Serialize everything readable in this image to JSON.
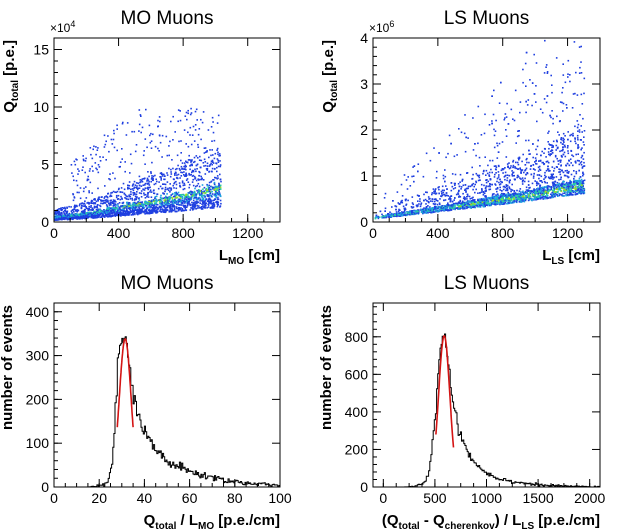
{
  "chart_data": [
    {
      "type": "scatter",
      "title": "MO Muons",
      "xlabel": {
        "main": "L",
        "sub": "MO",
        "unit": " [cm]"
      },
      "ylabel": {
        "main": "Q",
        "sub": "total",
        "unit": " [p.e.]"
      },
      "xlim": [
        0,
        1400
      ],
      "ylim": [
        0,
        160000
      ],
      "xticks": [
        0,
        400,
        800,
        1200
      ],
      "yticks": [
        0,
        50000,
        100000,
        150000
      ],
      "ytick_labels": [
        "0",
        "5",
        "10",
        "15"
      ],
      "y_multiplier": {
        "base": "×10",
        "exp": "4"
      },
      "description": "2D density histogram; band rising from about 5000 p.e. at 0 cm to about 30000 p.e. at 1030 cm; points scattered up to about 100000 p.e.; no entries beyond 1030 cm",
      "band": {
        "x": [
          0,
          200,
          400,
          600,
          800,
          1030
        ],
        "y": [
          5000,
          8000,
          13000,
          18000,
          23000,
          30000
        ]
      },
      "x_max_entries": 1030,
      "y_max_entries": 100000
    },
    {
      "type": "scatter",
      "title": "LS Muons",
      "xlabel": {
        "main": "L",
        "sub": "LS",
        "unit": " [cm]"
      },
      "ylabel": {
        "main": "Q",
        "sub": "total",
        "unit": " [p.e.]"
      },
      "xlim": [
        0,
        1400
      ],
      "ylim": [
        0,
        4000000
      ],
      "xticks": [
        0,
        400,
        800,
        1200
      ],
      "yticks": [
        0,
        1000000,
        2000000,
        3000000,
        4000000
      ],
      "ytick_labels": [
        "0",
        "1",
        "2",
        "3",
        "4"
      ],
      "y_multiplier": {
        "base": "×10",
        "exp": "6"
      },
      "description": "2D density histogram; linear band from about 100000 p.e. at 0 cm to about 800000 p.e. at 1300 cm; scattered tail up to about 4000000 p.e.",
      "band": {
        "x": [
          0,
          300,
          600,
          900,
          1300
        ],
        "y": [
          100000,
          250000,
          400000,
          560000,
          800000
        ]
      },
      "x_max_entries": 1300,
      "y_max_entries": 3900000
    },
    {
      "type": "line",
      "title": "MO Muons",
      "xlabel": {
        "main": "Q",
        "sub": "total",
        "unit": " / L",
        "sub2": "MO",
        "unit2": " [p.e./cm]"
      },
      "ylabel": {
        "main": "number of events"
      },
      "xlim": [
        0,
        100
      ],
      "ylim": [
        0,
        420
      ],
      "xticks": [
        0,
        20,
        40,
        60,
        80,
        100
      ],
      "yticks": [
        0,
        100,
        200,
        300,
        400
      ],
      "histogram": {
        "x": [
          0,
          5,
          10,
          15,
          20,
          24,
          26,
          27,
          28,
          29,
          30,
          31,
          32,
          33,
          34,
          35,
          36,
          37,
          38,
          40,
          42,
          45,
          48,
          50,
          55,
          60,
          65,
          70,
          75,
          80,
          85,
          90,
          95,
          100
        ],
        "y": [
          0,
          0,
          0,
          0,
          2,
          10,
          60,
          150,
          250,
          310,
          335,
          340,
          325,
          290,
          245,
          215,
          190,
          165,
          150,
          125,
          105,
          85,
          70,
          60,
          45,
          35,
          28,
          22,
          17,
          12,
          9,
          7,
          5,
          3
        ]
      },
      "fit": {
        "type": "gaussian",
        "mean": 31.5,
        "sigma": 2.6,
        "amplitude": 338,
        "range": [
          28,
          35
        ]
      }
    },
    {
      "type": "line",
      "title": "LS Muons",
      "xlabel": {
        "main": "(Q",
        "sub": "total",
        "unit": " - Q",
        "sub2": "cherenkov",
        "unit2": ") / L",
        "sub3": "LS",
        "unit3": " [p.e./cm]"
      },
      "ylabel": {
        "main": "number of events"
      },
      "xlim": [
        -100,
        2100
      ],
      "ylim": [
        0,
        980
      ],
      "xticks": [
        0,
        500,
        1000,
        1500,
        2000
      ],
      "yticks": [
        0,
        200,
        400,
        600,
        800
      ],
      "histogram": {
        "x": [
          -100,
          0,
          200,
          300,
          400,
          450,
          500,
          530,
          560,
          590,
          610,
          640,
          670,
          700,
          750,
          800,
          850,
          900,
          1000,
          1100,
          1200,
          1300,
          1400,
          1500,
          1600,
          1700,
          1800,
          1900,
          2000,
          2100
        ],
        "y": [
          0,
          0,
          0,
          2,
          20,
          100,
          350,
          600,
          770,
          810,
          780,
          620,
          470,
          380,
          280,
          210,
          160,
          120,
          75,
          50,
          35,
          25,
          18,
          12,
          8,
          6,
          4,
          3,
          2,
          1
        ]
      },
      "fit": {
        "type": "gaussian",
        "mean": 590,
        "sigma": 55,
        "amplitude": 805,
        "range": [
          510,
          680
        ]
      }
    }
  ]
}
